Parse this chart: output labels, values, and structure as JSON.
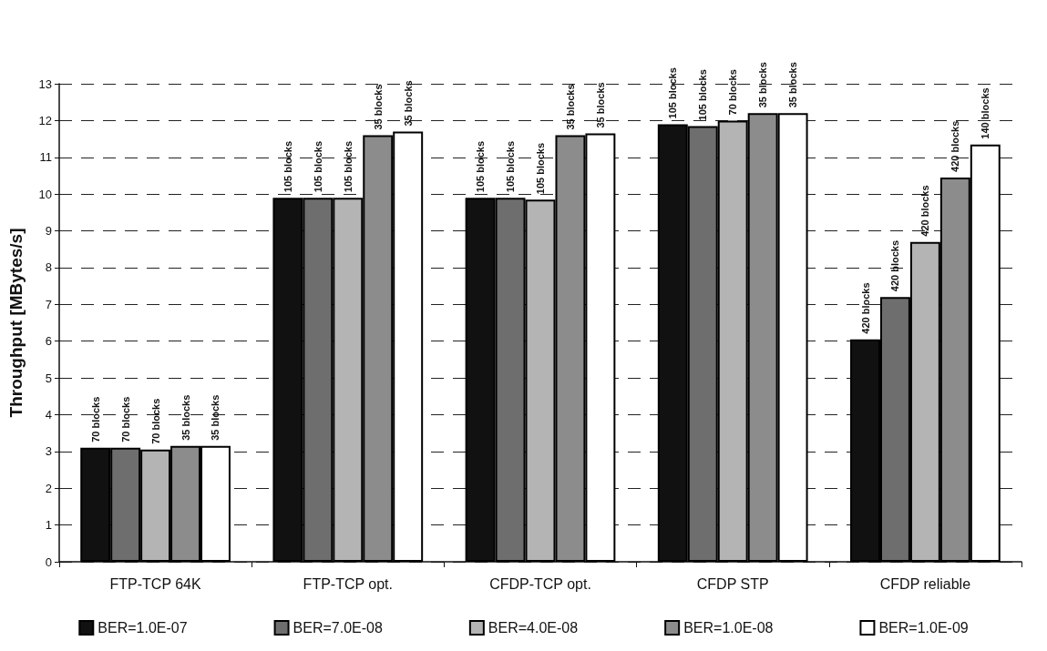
{
  "chart_data": {
    "type": "bar",
    "ylabel": "Throughput [MBytes/s]",
    "categories": [
      "FTP-TCP 64K",
      "FTP-TCP opt.",
      "CFDP-TCP opt.",
      "CFDP STP",
      "CFDP reliable"
    ],
    "series": [
      {
        "name": "BER=1.0E-07",
        "color": "#111111",
        "values": [
          3.1,
          9.9,
          9.9,
          11.9,
          6.05
        ]
      },
      {
        "name": "BER=7.0E-08",
        "color": "#6e6e6e",
        "values": [
          3.1,
          9.9,
          9.9,
          11.85,
          7.2
        ]
      },
      {
        "name": "BER=4.0E-08",
        "color": "#b4b4b4",
        "values": [
          3.05,
          9.9,
          9.85,
          12.0,
          8.7
        ]
      },
      {
        "name": "BER=1.0E-08",
        "color": "#8c8c8c",
        "values": [
          3.15,
          11.6,
          11.6,
          12.2,
          10.45
        ]
      },
      {
        "name": "BER=1.0E-09",
        "color": "#ffffff",
        "values": [
          3.15,
          11.7,
          11.65,
          12.2,
          11.35
        ]
      }
    ],
    "annotations": [
      "70 blocks",
      "70 blocks",
      "70 blocks",
      "35 blocks",
      "35 blocks",
      "105 blocks",
      "105 blocks",
      "105 blocks",
      "35 blocks",
      "35 blocks",
      "105 blocks",
      "105 blocks",
      "105 blocks",
      "35 blocks",
      "35 blocks",
      "105 blocks",
      "105 blocks",
      "70 blocks",
      "35 blocks",
      "35 blocks",
      "420 blocks",
      "420 blocks",
      "420 blocks",
      "420 blocks",
      "140 blocks"
    ],
    "ylim": [
      0,
      13
    ],
    "yticks": [
      0,
      1,
      2,
      3,
      4,
      5,
      6,
      7,
      8,
      9,
      10,
      11,
      12,
      13
    ],
    "grid": "y",
    "legend": "bottom"
  }
}
